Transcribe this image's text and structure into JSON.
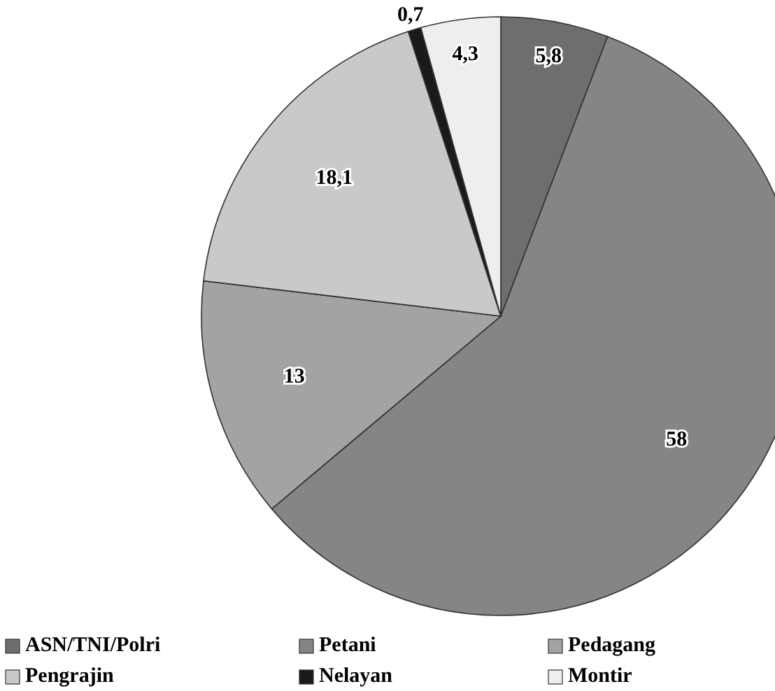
{
  "chart_data": {
    "type": "pie",
    "categories": [
      "ASN/TNI/Polri",
      "Petani",
      "Pedagang",
      "Pengrajin",
      "Nelayan",
      "Montir"
    ],
    "values": [
      5.8,
      58,
      13,
      18.1,
      0.7,
      4.3
    ],
    "value_labels": [
      "5,8",
      "58",
      "13",
      "18,1",
      "0,7",
      "4,3"
    ],
    "colors": [
      "#6e6e6e",
      "#858585",
      "#a3a3a3",
      "#c9c9c9",
      "#1a1a1a",
      "#eeeeee"
    ],
    "legend": "bottom"
  }
}
